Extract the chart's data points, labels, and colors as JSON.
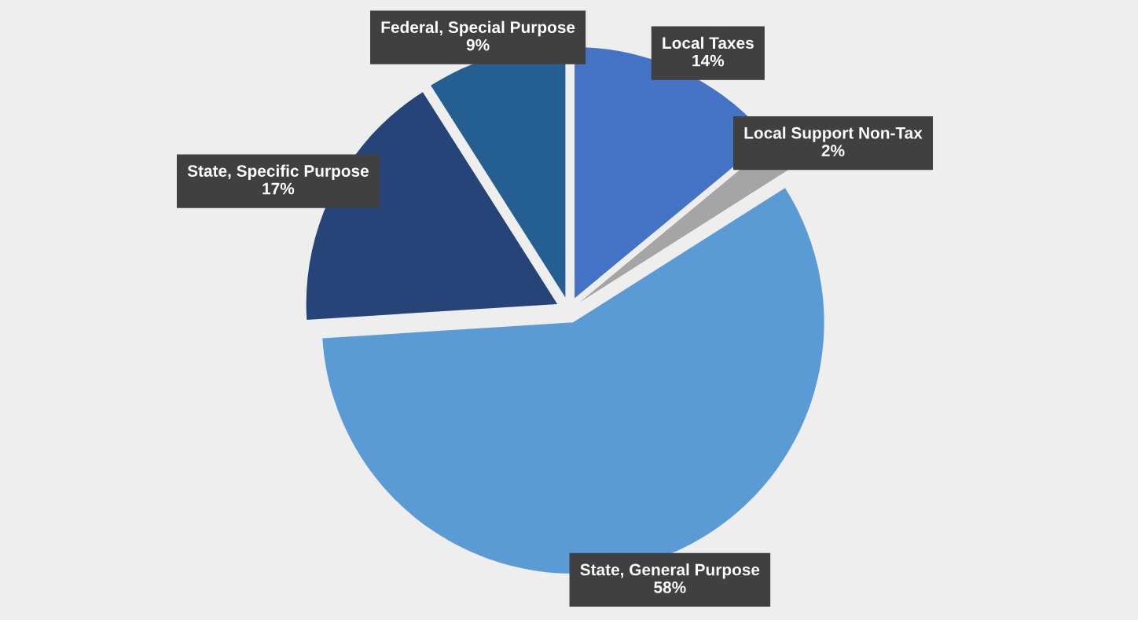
{
  "chart_data": {
    "type": "pie",
    "categories": [
      "Local Taxes",
      "Local Support Non-Tax",
      "State, General Purpose",
      "State, Specific Purpose",
      "Federal, Special Purpose"
    ],
    "values": [
      14,
      2,
      58,
      17,
      9
    ],
    "colors": [
      "#4472c4",
      "#a5a5a5",
      "#5b9bd5",
      "#264478",
      "#255e91"
    ],
    "value_labels": [
      "14%",
      "2%",
      "58%",
      "17%",
      "9%"
    ]
  }
}
